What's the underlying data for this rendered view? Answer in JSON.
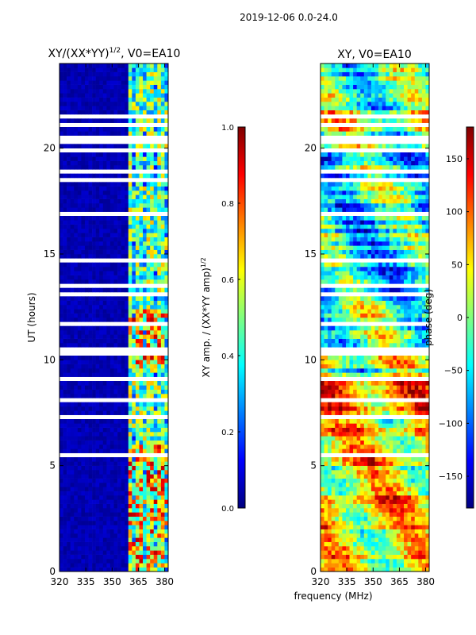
{
  "figure_title": "2019-12-06 0.0-24.0",
  "chart_data": [
    {
      "type": "heatmap",
      "title": "XY/(XX*YY)",
      "title_sup": "1/2",
      "title_suffix": ", V0=EA10",
      "xlabel": "",
      "ylabel": "UT (hours)",
      "xlim": [
        320,
        382
      ],
      "ylim": [
        0,
        24
      ],
      "xticks": [
        320,
        335,
        350,
        365,
        380
      ],
      "yticks": [
        0,
        5,
        10,
        15,
        20
      ],
      "signal_band_mhz": [
        360,
        381
      ],
      "colorbar": {
        "label": "XY amp. / (XX*YY amp)",
        "label_sup": "1/2",
        "range": [
          0.0,
          1.0
        ],
        "ticks": [
          "0.0",
          "0.2",
          "0.4",
          "0.6",
          "0.8",
          "1.0"
        ],
        "colormap": "jet"
      }
    },
    {
      "type": "heatmap",
      "title": "XY, V0=EA10",
      "xlabel": "frequency (MHz)",
      "ylabel": "",
      "xlim": [
        320,
        382
      ],
      "ylim": [
        0,
        24
      ],
      "xticks": [
        320,
        335,
        350,
        365,
        380
      ],
      "yticks": [
        0,
        5,
        10,
        15,
        20
      ],
      "colorbar": {
        "label": "phase (deg)",
        "range": [
          -180,
          180
        ],
        "ticks": [
          "−150",
          "−100",
          "−50",
          "0",
          "50",
          "100",
          "150"
        ],
        "tick_values": [
          -150,
          -100,
          -50,
          0,
          50,
          100,
          150
        ],
        "colormap": "jet"
      }
    }
  ]
}
